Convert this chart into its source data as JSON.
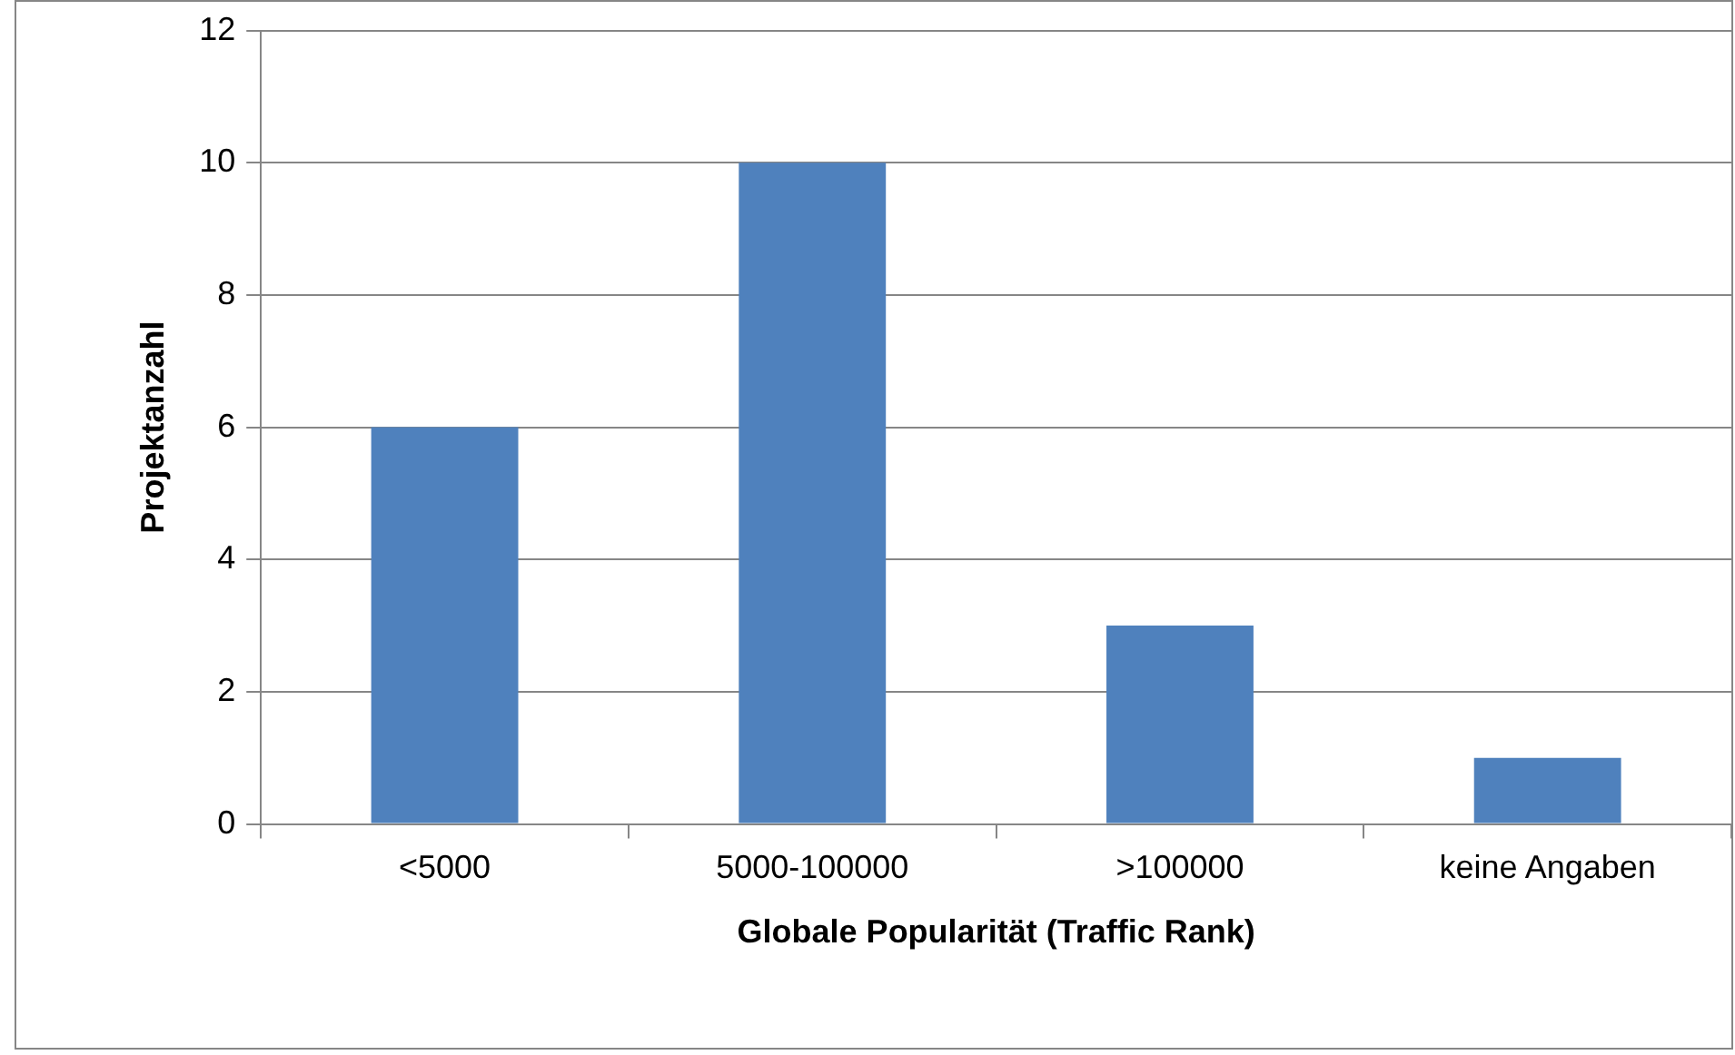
{
  "chart_data": {
    "type": "bar",
    "xlabel": "Globale Popularität (Traffic Rank)",
    "ylabel": "Projektanzahl",
    "categories": [
      "<5000",
      "5000-100000",
      ">100000",
      "keine Angaben"
    ],
    "values": [
      6,
      10,
      3,
      1
    ],
    "color": "#4f81bd",
    "ylim": [
      0,
      12
    ],
    "yticks": [
      0,
      2,
      4,
      6,
      8,
      10,
      12
    ],
    "grid": "y",
    "legend": false
  }
}
